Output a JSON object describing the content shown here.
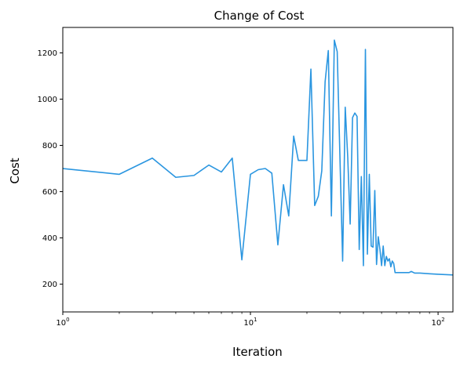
{
  "chart_data": {
    "type": "line",
    "title": "Change of Cost",
    "xlabel": "Iteration",
    "ylabel": "Cost",
    "xscale": "log",
    "xlim": [
      1,
      120
    ],
    "ylim": [
      80,
      1310
    ],
    "grid": false,
    "line_color": "#2b96e0",
    "xticks": [
      {
        "value": 1,
        "base": "10",
        "exp": "0"
      },
      {
        "value": 10,
        "base": "10",
        "exp": "1"
      },
      {
        "value": 100,
        "base": "10",
        "exp": "2"
      }
    ],
    "yticks": [
      200,
      400,
      600,
      800,
      1000,
      1200
    ],
    "series": [
      {
        "x": [
          1,
          2,
          3,
          4,
          5,
          6,
          7,
          8,
          9,
          10,
          11,
          12,
          13,
          14,
          15,
          16,
          17,
          18,
          19,
          20,
          21,
          22,
          23,
          24,
          25,
          26,
          27,
          28,
          29,
          30,
          31,
          32,
          33,
          34,
          35,
          36,
          37,
          38,
          39,
          40,
          41,
          42,
          43,
          44,
          45,
          46,
          47,
          48,
          49,
          50,
          51,
          52,
          53,
          54,
          55,
          56,
          57,
          58,
          59,
          60,
          65,
          70,
          72,
          75,
          80,
          90,
          100,
          120
        ],
        "y": [
          700,
          675,
          745,
          662,
          670,
          715,
          685,
          745,
          305,
          675,
          695,
          700,
          680,
          370,
          630,
          495,
          840,
          735,
          735,
          735,
          1130,
          540,
          580,
          690,
          1075,
          1210,
          495,
          1255,
          1205,
          745,
          300,
          965,
          750,
          460,
          920,
          940,
          925,
          350,
          665,
          280,
          1215,
          330,
          675,
          365,
          360,
          605,
          285,
          405,
          350,
          280,
          365,
          280,
          320,
          300,
          310,
          275,
          300,
          290,
          250,
          250,
          250,
          250,
          255,
          248,
          248,
          245,
          243,
          240
        ]
      }
    ]
  }
}
